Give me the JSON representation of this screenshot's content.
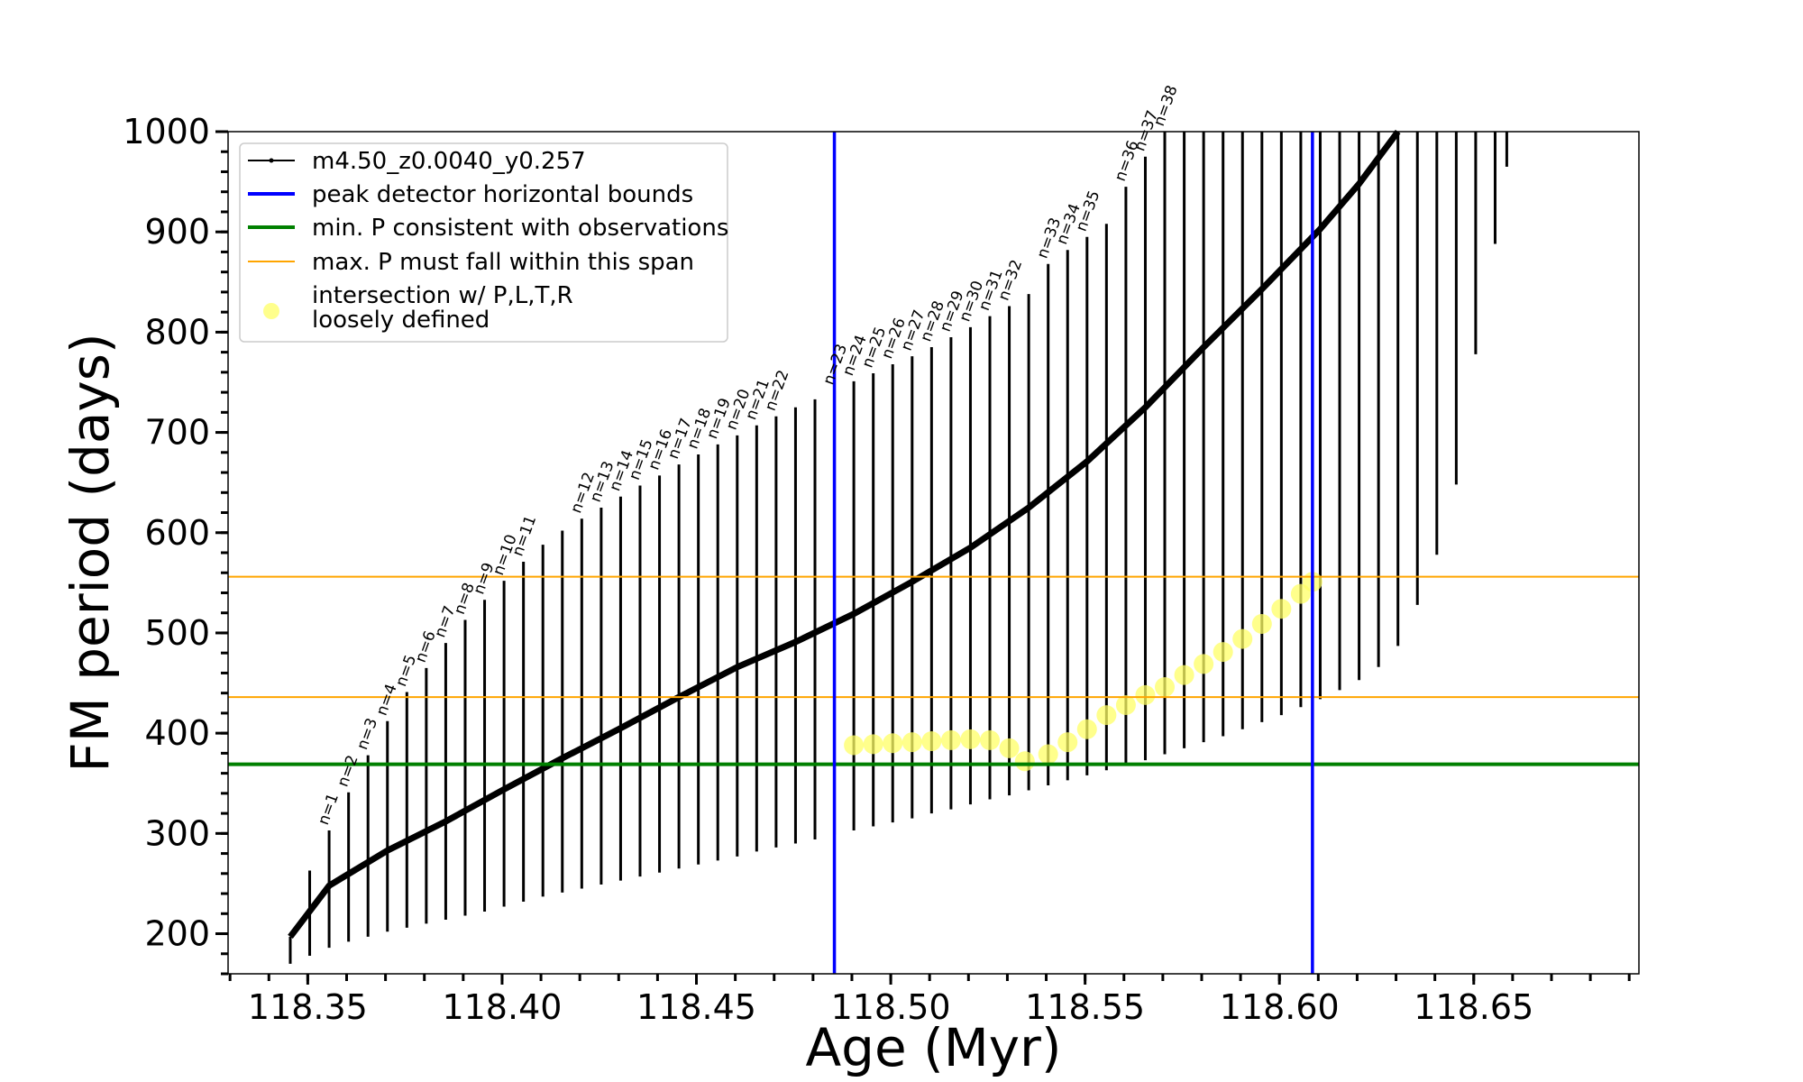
{
  "chart_data": {
    "type": "line",
    "xlabel": "Age (Myr)",
    "ylabel": "FM period (days)",
    "xlim": [
      118.3295,
      118.6925
    ],
    "ylim": [
      160,
      1000
    ],
    "x_ticks": [
      "118.35",
      "118.40",
      "118.45",
      "118.50",
      "118.55",
      "118.60",
      "118.65"
    ],
    "x_tick_values": [
      118.35,
      118.4,
      118.45,
      118.5,
      118.55,
      118.6,
      118.65
    ],
    "y_ticks": [
      "200",
      "300",
      "400",
      "500",
      "600",
      "700",
      "800",
      "900",
      "1000"
    ],
    "y_tick_values": [
      200,
      300,
      400,
      500,
      600,
      700,
      800,
      900,
      1000
    ],
    "legend_position": "top-left",
    "legend": [
      {
        "key": "track",
        "label": "m4.50_z0.0040_y0.257",
        "color": "#000000",
        "style": "line-marker"
      },
      {
        "key": "bounds",
        "label": "peak detector horizontal bounds",
        "color": "#0000ff",
        "style": "line"
      },
      {
        "key": "minp",
        "label": "min. P consistent with observations",
        "color": "#008000",
        "style": "line"
      },
      {
        "key": "maxp",
        "label": "max. P must fall within this span",
        "color": "#ffa500",
        "style": "line"
      },
      {
        "key": "intersect",
        "label_lines": [
          "intersection w/ P,L,T,R",
          "loosely defined"
        ],
        "color": "#ffff66",
        "style": "marker"
      }
    ],
    "vertical_lines": [
      {
        "series": "peak detector horizontal bounds",
        "x": 118.4855,
        "color": "#0000ff"
      },
      {
        "series": "peak detector horizontal bounds",
        "x": 118.6085,
        "color": "#0000ff"
      }
    ],
    "horizontal_lines": [
      {
        "series": "min. P consistent with observations",
        "y": 369,
        "color": "#008000"
      },
      {
        "series": "max. P must fall within this span",
        "y": 436,
        "color": "#ffa500"
      },
      {
        "series": "max. P must fall within this span",
        "y": 556,
        "color": "#ffa500"
      }
    ],
    "spikes": [
      {
        "x": 118.3455,
        "low": 170,
        "high": 197
      },
      {
        "x": 118.3505,
        "low": 178,
        "high": 263
      },
      {
        "x": 118.3555,
        "low": 186,
        "high": 303,
        "label": "n=1"
      },
      {
        "x": 118.3605,
        "low": 192,
        "high": 341,
        "label": "n=2"
      },
      {
        "x": 118.3655,
        "low": 197,
        "high": 378,
        "label": "n=3"
      },
      {
        "x": 118.3705,
        "low": 202,
        "high": 412,
        "label": "n=4"
      },
      {
        "x": 118.3755,
        "low": 206,
        "high": 441,
        "label": "n=5"
      },
      {
        "x": 118.3805,
        "low": 210,
        "high": 465,
        "label": "n=6"
      },
      {
        "x": 118.3855,
        "low": 214,
        "high": 490,
        "label": "n=7"
      },
      {
        "x": 118.3905,
        "low": 218,
        "high": 513,
        "label": "n=8"
      },
      {
        "x": 118.3955,
        "low": 222,
        "high": 533,
        "label": "n=9"
      },
      {
        "x": 118.4005,
        "low": 227,
        "high": 552,
        "label": "n=10"
      },
      {
        "x": 118.4055,
        "low": 232,
        "high": 571,
        "label": "n=11"
      },
      {
        "x": 118.4105,
        "low": 237,
        "high": 588
      },
      {
        "x": 118.4155,
        "low": 241,
        "high": 602
      },
      {
        "x": 118.4205,
        "low": 245,
        "high": 614,
        "label": "n=12"
      },
      {
        "x": 118.4255,
        "low": 249,
        "high": 625,
        "label": "n=13"
      },
      {
        "x": 118.4305,
        "low": 253,
        "high": 636,
        "label": "n=14"
      },
      {
        "x": 118.4355,
        "low": 257,
        "high": 647,
        "label": "n=15"
      },
      {
        "x": 118.4405,
        "low": 261,
        "high": 657,
        "label": "n=16"
      },
      {
        "x": 118.4455,
        "low": 265,
        "high": 668,
        "label": "n=17"
      },
      {
        "x": 118.4505,
        "low": 269,
        "high": 678,
        "label": "n=18"
      },
      {
        "x": 118.4555,
        "low": 273,
        "high": 688,
        "label": "n=19"
      },
      {
        "x": 118.4605,
        "low": 277,
        "high": 697,
        "label": "n=20"
      },
      {
        "x": 118.4655,
        "low": 282,
        "high": 707,
        "label": "n=21"
      },
      {
        "x": 118.4705,
        "low": 286,
        "high": 716,
        "label": "n=22"
      },
      {
        "x": 118.4755,
        "low": 290,
        "high": 725
      },
      {
        "x": 118.4805,
        "low": 294,
        "high": 733
      },
      {
        "x": 118.4855,
        "low": 299,
        "high": 742,
        "label": "n=23"
      },
      {
        "x": 118.4905,
        "low": 303,
        "high": 751,
        "label": "n=24"
      },
      {
        "x": 118.4955,
        "low": 307,
        "high": 759,
        "label": "n=25"
      },
      {
        "x": 118.5005,
        "low": 311,
        "high": 768,
        "label": "n=26"
      },
      {
        "x": 118.5055,
        "low": 315,
        "high": 776,
        "label": "n=27"
      },
      {
        "x": 118.5105,
        "low": 320,
        "high": 785,
        "label": "n=28"
      },
      {
        "x": 118.5155,
        "low": 324,
        "high": 795,
        "label": "n=29"
      },
      {
        "x": 118.5205,
        "low": 329,
        "high": 805,
        "label": "n=30"
      },
      {
        "x": 118.5255,
        "low": 334,
        "high": 816,
        "label": "n=31"
      },
      {
        "x": 118.5305,
        "low": 338,
        "high": 826,
        "label": "n=32"
      },
      {
        "x": 118.5355,
        "low": 343,
        "high": 838
      },
      {
        "x": 118.5405,
        "low": 348,
        "high": 868,
        "label": "n=33"
      },
      {
        "x": 118.5455,
        "low": 353,
        "high": 882,
        "label": "n=34"
      },
      {
        "x": 118.5505,
        "low": 358,
        "high": 895,
        "label": "n=35"
      },
      {
        "x": 118.5555,
        "low": 363,
        "high": 908
      },
      {
        "x": 118.5605,
        "low": 368,
        "high": 945,
        "label": "n=36"
      },
      {
        "x": 118.5655,
        "low": 373,
        "high": 975,
        "label": "n=37"
      },
      {
        "x": 118.5705,
        "low": 379,
        "high": 1000,
        "label": "n=38"
      },
      {
        "x": 118.5755,
        "low": 385,
        "high": 1000
      },
      {
        "x": 118.5805,
        "low": 391,
        "high": 1000
      },
      {
        "x": 118.5855,
        "low": 397,
        "high": 1000
      },
      {
        "x": 118.5905,
        "low": 404,
        "high": 1000
      },
      {
        "x": 118.5955,
        "low": 411,
        "high": 1000
      },
      {
        "x": 118.6005,
        "low": 418,
        "high": 1000
      },
      {
        "x": 118.6055,
        "low": 426,
        "high": 1000
      },
      {
        "x": 118.6105,
        "low": 434,
        "high": 1000
      },
      {
        "x": 118.6155,
        "low": 443,
        "high": 1000
      },
      {
        "x": 118.6205,
        "low": 453,
        "high": 1000
      },
      {
        "x": 118.6255,
        "low": 466,
        "high": 1000
      },
      {
        "x": 118.6305,
        "low": 487,
        "high": 1000
      },
      {
        "x": 118.6355,
        "low": 528,
        "high": 1000
      },
      {
        "x": 118.6405,
        "low": 578,
        "high": 1000
      },
      {
        "x": 118.6455,
        "low": 648,
        "high": 1000
      },
      {
        "x": 118.6505,
        "low": 778,
        "high": 1000
      },
      {
        "x": 118.6555,
        "low": 888,
        "high": 1000
      },
      {
        "x": 118.6585,
        "low": 965,
        "high": 1000
      }
    ],
    "envelope": [
      {
        "x": 118.3455,
        "y": 197
      },
      {
        "x": 118.3555,
        "y": 248
      },
      {
        "x": 118.3705,
        "y": 283
      },
      {
        "x": 118.3855,
        "y": 312
      },
      {
        "x": 118.4005,
        "y": 344
      },
      {
        "x": 118.4155,
        "y": 375
      },
      {
        "x": 118.4305,
        "y": 405
      },
      {
        "x": 118.4455,
        "y": 436
      },
      {
        "x": 118.4605,
        "y": 466
      },
      {
        "x": 118.4755,
        "y": 491
      },
      {
        "x": 118.4905,
        "y": 519
      },
      {
        "x": 118.5055,
        "y": 551
      },
      {
        "x": 118.5205,
        "y": 585
      },
      {
        "x": 118.5355,
        "y": 625
      },
      {
        "x": 118.5505,
        "y": 671
      },
      {
        "x": 118.5655,
        "y": 725
      },
      {
        "x": 118.5805,
        "y": 785
      },
      {
        "x": 118.5955,
        "y": 843
      },
      {
        "x": 118.6105,
        "y": 903
      },
      {
        "x": 118.6205,
        "y": 948
      },
      {
        "x": 118.6305,
        "y": 1000
      }
    ],
    "intersection_points": [
      {
        "x": 118.4905,
        "y": 388
      },
      {
        "x": 118.4955,
        "y": 389
      },
      {
        "x": 118.5005,
        "y": 390
      },
      {
        "x": 118.5055,
        "y": 391
      },
      {
        "x": 118.5105,
        "y": 392
      },
      {
        "x": 118.5155,
        "y": 393
      },
      {
        "x": 118.5205,
        "y": 394
      },
      {
        "x": 118.5255,
        "y": 393
      },
      {
        "x": 118.5305,
        "y": 385
      },
      {
        "x": 118.5345,
        "y": 372
      },
      {
        "x": 118.5405,
        "y": 379
      },
      {
        "x": 118.5455,
        "y": 391
      },
      {
        "x": 118.5505,
        "y": 404
      },
      {
        "x": 118.5555,
        "y": 418
      },
      {
        "x": 118.5605,
        "y": 428
      },
      {
        "x": 118.5655,
        "y": 438
      },
      {
        "x": 118.5705,
        "y": 446
      },
      {
        "x": 118.5755,
        "y": 458
      },
      {
        "x": 118.5805,
        "y": 469
      },
      {
        "x": 118.5855,
        "y": 481
      },
      {
        "x": 118.5905,
        "y": 494
      },
      {
        "x": 118.5955,
        "y": 509
      },
      {
        "x": 118.6005,
        "y": 524
      },
      {
        "x": 118.6055,
        "y": 539
      },
      {
        "x": 118.6085,
        "y": 551
      }
    ]
  }
}
